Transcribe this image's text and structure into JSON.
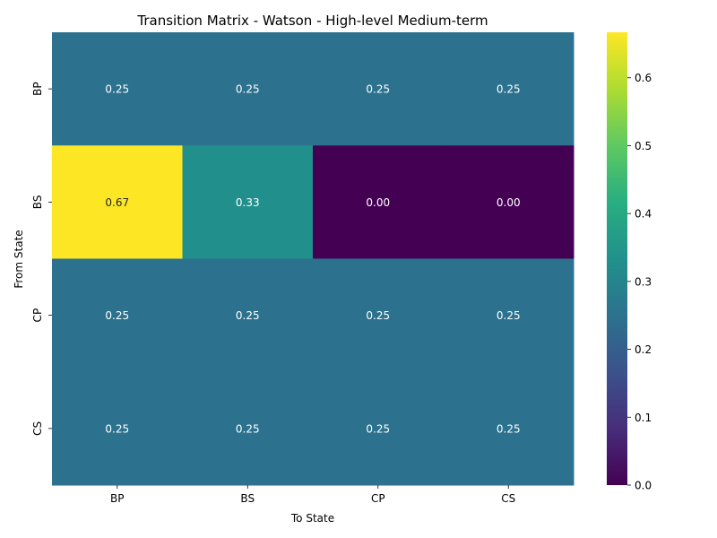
{
  "chart_data": {
    "type": "heatmap",
    "title": "Transition Matrix - Watson - High-level Medium-term",
    "xlabel": "To State",
    "ylabel": "From State",
    "x_categories": [
      "BP",
      "BS",
      "CP",
      "CS"
    ],
    "y_categories": [
      "BP",
      "BS",
      "CP",
      "CS"
    ],
    "values": [
      [
        0.25,
        0.25,
        0.25,
        0.25
      ],
      [
        0.67,
        0.33,
        0.0,
        0.0
      ],
      [
        0.25,
        0.25,
        0.25,
        0.25
      ],
      [
        0.25,
        0.25,
        0.25,
        0.25
      ]
    ],
    "colormap": "viridis",
    "vmin": 0.0,
    "vmax": 0.667,
    "colorbar_ticks": [
      "0.0",
      "0.1",
      "0.2",
      "0.3",
      "0.4",
      "0.5",
      "0.6"
    ],
    "colorbar_tick_values": [
      0.0,
      0.1,
      0.2,
      0.3,
      0.4,
      0.5,
      0.6
    ],
    "annotation_colors": {
      "dark": "#ffffff",
      "light": "#262626"
    }
  }
}
